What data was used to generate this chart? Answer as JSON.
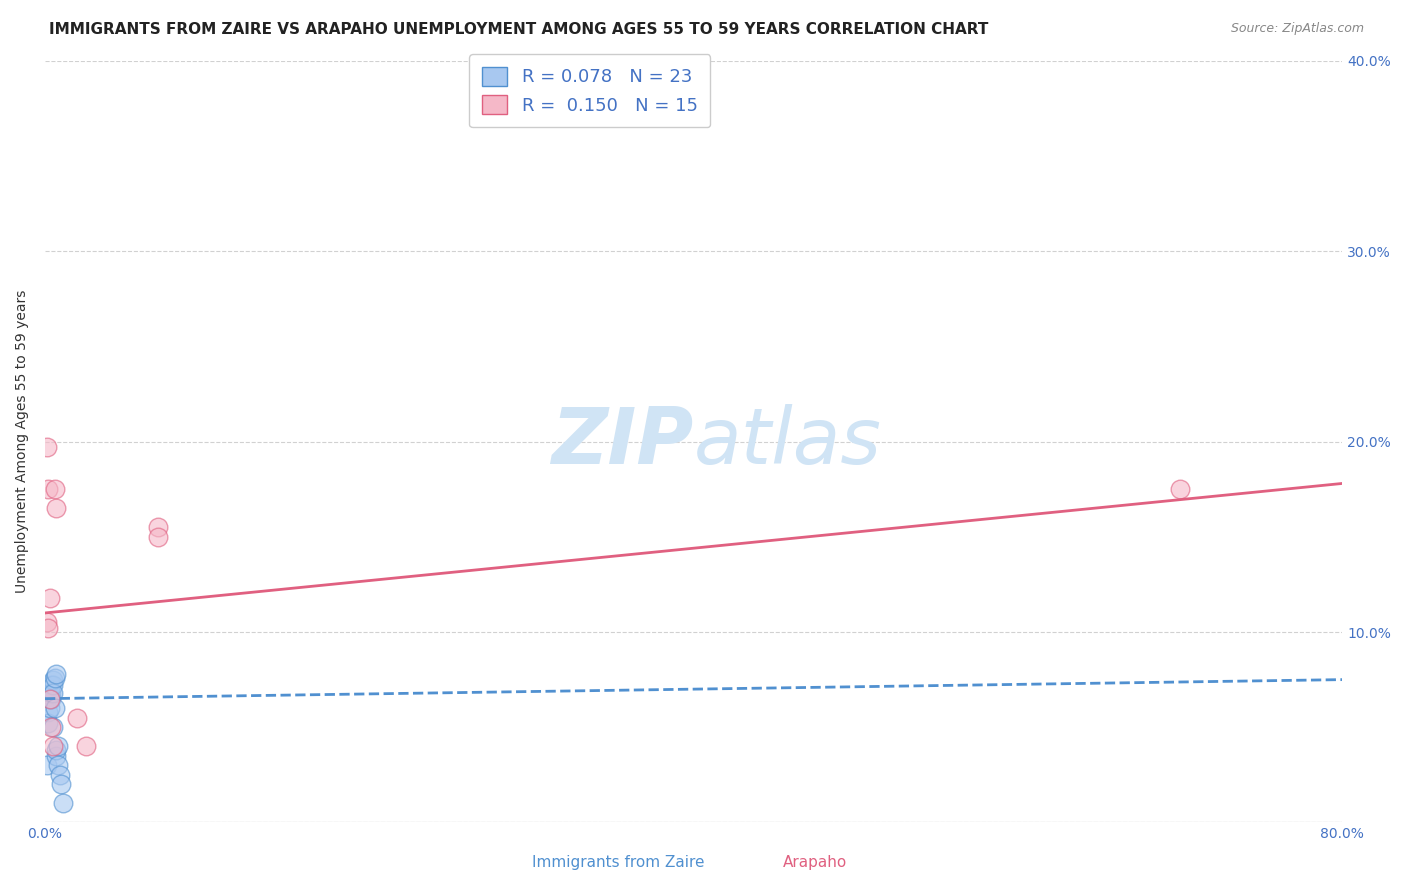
{
  "title": "IMMIGRANTS FROM ZAIRE VS ARAPAHO UNEMPLOYMENT AMONG AGES 55 TO 59 YEARS CORRELATION CHART",
  "source": "Source: ZipAtlas.com",
  "xlabel_blue": "Immigrants from Zaire",
  "xlabel_pink": "Arapaho",
  "ylabel": "Unemployment Among Ages 55 to 59 years",
  "xlim": [
    0.0,
    0.8
  ],
  "ylim": [
    0.0,
    0.4
  ],
  "xticks": [
    0.0,
    0.1,
    0.2,
    0.3,
    0.4,
    0.5,
    0.6,
    0.7,
    0.8
  ],
  "xtick_labels": [
    "0.0%",
    "",
    "",
    "",
    "",
    "",
    "",
    "",
    "80.0%"
  ],
  "yticks": [
    0.0,
    0.1,
    0.2,
    0.3,
    0.4
  ],
  "ytick_labels_right": [
    "",
    "10.0%",
    "20.0%",
    "30.0%",
    "40.0%"
  ],
  "blue_R": 0.078,
  "blue_N": 23,
  "pink_R": 0.15,
  "pink_N": 15,
  "blue_fill_color": "#A8C8F0",
  "pink_fill_color": "#F5B8C8",
  "blue_edge_color": "#5090D0",
  "pink_edge_color": "#E06080",
  "blue_line_color": "#5090D0",
  "pink_line_color": "#E06080",
  "text_color": "#4472C4",
  "watermark_color": "#D0E4F5",
  "blue_scatter_x": [
    0.001,
    0.002,
    0.002,
    0.003,
    0.003,
    0.003,
    0.004,
    0.004,
    0.004,
    0.005,
    0.005,
    0.005,
    0.005,
    0.006,
    0.006,
    0.007,
    0.007,
    0.007,
    0.008,
    0.008,
    0.009,
    0.01,
    0.011
  ],
  "blue_scatter_y": [
    0.03,
    0.058,
    0.052,
    0.065,
    0.06,
    0.07,
    0.072,
    0.068,
    0.065,
    0.075,
    0.072,
    0.068,
    0.05,
    0.076,
    0.06,
    0.078,
    0.035,
    0.038,
    0.04,
    0.03,
    0.025,
    0.02,
    0.01
  ],
  "pink_scatter_x": [
    0.001,
    0.001,
    0.002,
    0.002,
    0.003,
    0.003,
    0.004,
    0.005,
    0.006,
    0.007,
    0.02,
    0.025,
    0.07,
    0.07,
    0.7
  ],
  "pink_scatter_y": [
    0.197,
    0.105,
    0.102,
    0.175,
    0.118,
    0.065,
    0.05,
    0.04,
    0.175,
    0.165,
    0.055,
    0.04,
    0.155,
    0.15,
    0.175
  ],
  "blue_line_x": [
    0.0,
    0.8
  ],
  "blue_line_y": [
    0.065,
    0.075
  ],
  "pink_line_x": [
    0.0,
    0.8
  ],
  "pink_line_y": [
    0.11,
    0.178
  ],
  "title_fontsize": 11,
  "tick_fontsize": 10,
  "legend_fontsize": 13,
  "background_color": "#FFFFFF",
  "grid_color": "#CCCCCC"
}
